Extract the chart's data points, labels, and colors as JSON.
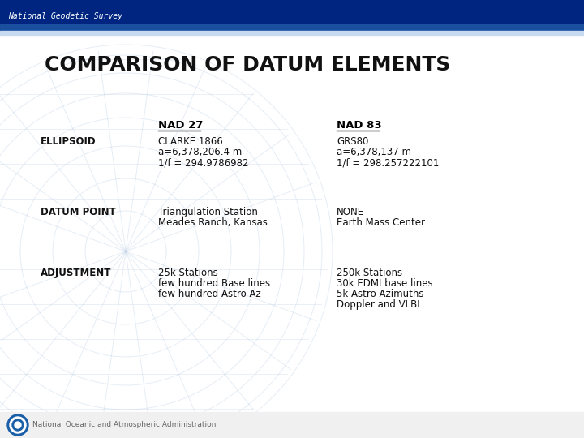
{
  "title": "COMPARISON OF DATUM ELEMENTS",
  "bg_color": "#ffffff",
  "header_dark_color": "#002580",
  "header_mid_color": "#1a4fa0",
  "header_light_color": "#c8daf0",
  "header_text": "National Geodetic Survey",
  "footer_text": "National Oceanic and Atmospheric Administration",
  "footer_text_color": "#666666",
  "col1_label": "NAD 27",
  "col2_label": "NAD 83",
  "rows": [
    {
      "row_label": "ELLIPSOID",
      "col1_lines": [
        "CLARKE 1866",
        "a=6,378,206.4 m",
        "1/f = 294.9786982"
      ],
      "col2_lines": [
        "GRS80",
        "a=6,378,137 m",
        "1/f = 298.257222101"
      ]
    },
    {
      "row_label": "DATUM POINT",
      "col1_lines": [
        "Triangulation Station",
        "Meades Ranch, Kansas"
      ],
      "col2_lines": [
        "NONE",
        "Earth Mass Center"
      ]
    },
    {
      "row_label": "ADJUSTMENT",
      "col1_lines": [
        "25k Stations",
        "few hundred Base lines",
        "few hundred Astro Az"
      ],
      "col2_lines": [
        "250k Stations",
        "30k EDMI base lines",
        "5k Astro Azimuths",
        "Doppler and VLBI"
      ]
    }
  ],
  "title_fontsize": 18,
  "header_fontsize": 7,
  "col_label_fontsize": 9.5,
  "row_label_fontsize": 8.5,
  "cell_fontsize": 8.5,
  "footer_fontsize": 6.5
}
